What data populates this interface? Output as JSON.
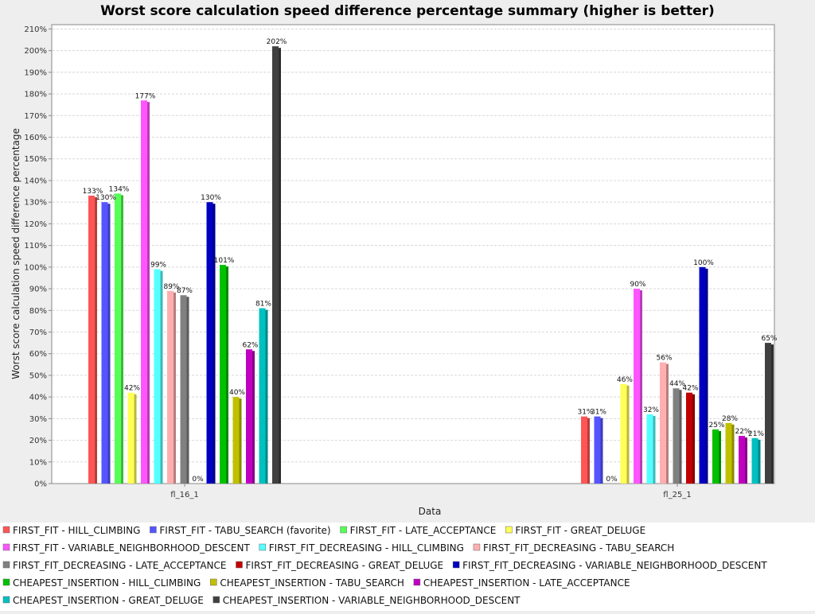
{
  "chart_data": {
    "type": "bar",
    "title": "Worst score calculation speed difference percentage summary (higher is better)",
    "xlabel": "Data",
    "ylabel": "Worst score calculation speed difference percentage",
    "ylim": [
      0,
      212
    ],
    "y_ticks": [
      "0%",
      "10%",
      "20%",
      "30%",
      "40%",
      "50%",
      "60%",
      "70%",
      "80%",
      "90%",
      "100%",
      "110%",
      "120%",
      "130%",
      "140%",
      "150%",
      "160%",
      "170%",
      "180%",
      "190%",
      "200%",
      "210%"
    ],
    "grid": true,
    "legend_position": "bottom",
    "categories": [
      "fl_16_1",
      "fl_25_1"
    ],
    "series": [
      {
        "name": "FIRST_FIT - HILL_CLIMBING",
        "color": "#ff5555",
        "values": [
          133,
          31
        ],
        "labels": [
          "133%",
          "31%"
        ]
      },
      {
        "name": "FIRST_FIT - TABU_SEARCH (favorite)",
        "color": "#5555ff",
        "values": [
          130,
          31
        ],
        "labels": [
          "130%",
          "31%"
        ]
      },
      {
        "name": "FIRST_FIT - LATE_ACCEPTANCE",
        "color": "#55ff55",
        "values": [
          134,
          0
        ],
        "labels": [
          "134%",
          "0%"
        ]
      },
      {
        "name": "FIRST_FIT - GREAT_DELUGE",
        "color": "#ffff55",
        "values": [
          42,
          46
        ],
        "labels": [
          "42%",
          "46%"
        ]
      },
      {
        "name": "FIRST_FIT - VARIABLE_NEIGHBORHOOD_DESCENT",
        "color": "#ff55ff",
        "values": [
          177,
          90
        ],
        "labels": [
          "177%",
          "90%"
        ]
      },
      {
        "name": "FIRST_FIT_DECREASING - HILL_CLIMBING",
        "color": "#55ffff",
        "values": [
          99,
          32
        ],
        "labels": [
          "99%",
          "32%"
        ]
      },
      {
        "name": "FIRST_FIT_DECREASING - TABU_SEARCH",
        "color": "#ffafaf",
        "values": [
          89,
          56
        ],
        "labels": [
          "89%",
          "56%"
        ]
      },
      {
        "name": "FIRST_FIT_DECREASING - LATE_ACCEPTANCE",
        "color": "#808080",
        "values": [
          87,
          44
        ],
        "labels": [
          "87%",
          "44%"
        ]
      },
      {
        "name": "FIRST_FIT_DECREASING - GREAT_DELUGE",
        "color": "#c00000",
        "values": [
          0,
          42
        ],
        "labels": [
          "0%",
          "42%"
        ]
      },
      {
        "name": "FIRST_FIT_DECREASING - VARIABLE_NEIGHBORHOOD_DESCENT",
        "color": "#0000c0",
        "values": [
          130,
          100
        ],
        "labels": [
          "130%",
          "100%"
        ]
      },
      {
        "name": "CHEAPEST_INSERTION - HILL_CLIMBING",
        "color": "#00c000",
        "values": [
          101,
          25
        ],
        "labels": [
          "101%",
          "25%"
        ]
      },
      {
        "name": "CHEAPEST_INSERTION - TABU_SEARCH",
        "color": "#c0c000",
        "values": [
          40,
          28
        ],
        "labels": [
          "40%",
          "28%"
        ]
      },
      {
        "name": "CHEAPEST_INSERTION - LATE_ACCEPTANCE",
        "color": "#c000c0",
        "values": [
          62,
          22
        ],
        "labels": [
          "62%",
          "22%"
        ]
      },
      {
        "name": "CHEAPEST_INSERTION - GREAT_DELUGE",
        "color": "#00c0c0",
        "values": [
          81,
          21
        ],
        "labels": [
          "81%",
          "21%"
        ]
      },
      {
        "name": "CHEAPEST_INSERTION - VARIABLE_NEIGHBORHOOD_DESCENT",
        "color": "#404040",
        "values": [
          202,
          65
        ],
        "labels": [
          "202%",
          "65%"
        ]
      }
    ]
  }
}
